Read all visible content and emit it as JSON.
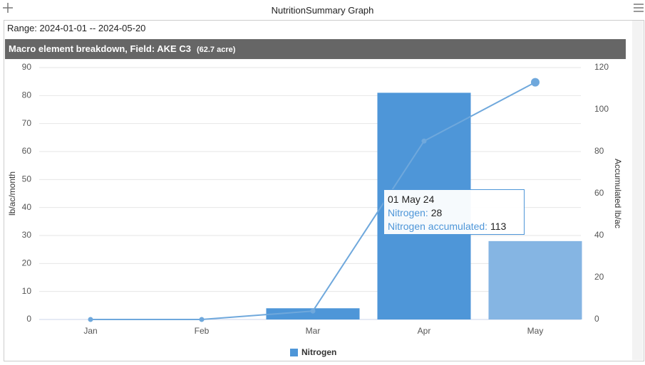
{
  "window": {
    "title": "NutritionSummary Graph"
  },
  "range": "Range: 2024-01-01 -- 2024-05-20",
  "header": {
    "title": "Macro element breakdown, Field: AKE C3",
    "area": "(62.7 acre)"
  },
  "chart_data": {
    "type": "bar",
    "categories": [
      "Jan",
      "Feb",
      "Mar",
      "Apr",
      "May"
    ],
    "series": [
      {
        "name": "Nitrogen",
        "color": "#4e96d8",
        "bar_colors": [
          "#4e96d8",
          "#4e96d8",
          "#4e96d8",
          "#4e96d8",
          "#85b5e3"
        ],
        "values": [
          0,
          0,
          4,
          81,
          28
        ]
      },
      {
        "name": "Nitrogen accumulated",
        "type": "line",
        "axis": "y2",
        "color": "#6fa8dc",
        "values": [
          0,
          0,
          4,
          85,
          113
        ]
      }
    ],
    "y_label": "lb/ac/month",
    "y2_label": "Accumulated lb/ac",
    "ylim": [
      0,
      90
    ],
    "yticks": [
      0,
      10,
      20,
      30,
      40,
      50,
      60,
      70,
      80,
      90
    ],
    "y2lim": [
      0,
      120
    ],
    "y2ticks": [
      0,
      20,
      40,
      60,
      80,
      100,
      120
    ],
    "grid": true,
    "legend": "bottom"
  },
  "tooltip": {
    "date": "01 May 24",
    "items": [
      {
        "label": "Nitrogen:",
        "value": 28
      },
      {
        "label": "Nitrogen accumulated:",
        "value": 113
      }
    ]
  }
}
